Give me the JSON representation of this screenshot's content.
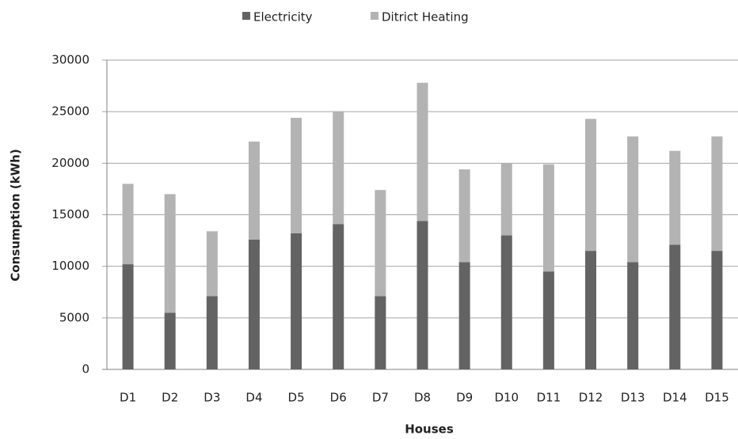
{
  "chart_data": {
    "type": "bar",
    "stacked": true,
    "x_label": "Houses",
    "y_label": "Consumption (kWh)",
    "categories": [
      "D1",
      "D2",
      "D3",
      "D4",
      "D5",
      "D6",
      "D7",
      "D8",
      "D9",
      "D10",
      "D11",
      "D12",
      "D13",
      "D14",
      "D15"
    ],
    "series": [
      {
        "name": "Electricity",
        "color": "#636363",
        "values": [
          10200,
          5500,
          7100,
          12600,
          13200,
          14100,
          7100,
          14400,
          10400,
          13000,
          9500,
          11500,
          10400,
          12100,
          11500
        ]
      },
      {
        "name": "Ditrict Heating",
        "color": "#b3b3b3",
        "values": [
          7800,
          11500,
          6300,
          9500,
          11200,
          10900,
          10300,
          13400,
          9000,
          7000,
          10400,
          12800,
          12200,
          9100,
          11100
        ]
      }
    ],
    "ylim": [
      0,
      30000
    ],
    "yticks": [
      0,
      5000,
      10000,
      15000,
      20000,
      25000,
      30000
    ],
    "grid": true,
    "legend": "top"
  }
}
